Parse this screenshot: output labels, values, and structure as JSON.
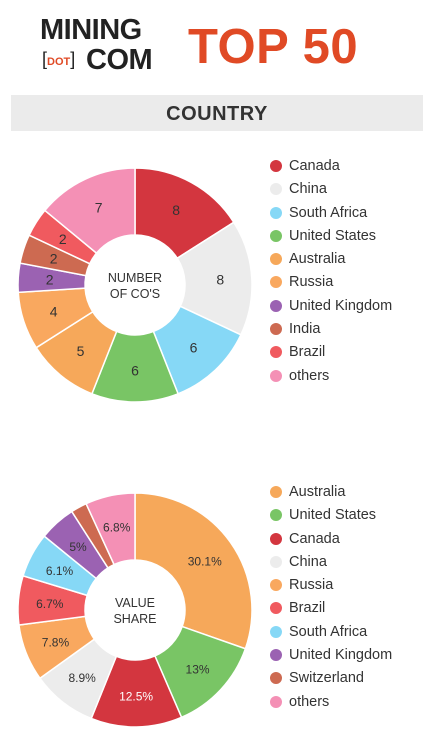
{
  "brand": {
    "mining": "MINING",
    "dot": "DOT",
    "com": "COM",
    "top": "TOP 50"
  },
  "section_title": "COUNTRY",
  "chart_data": [
    {
      "type": "pie",
      "center_label": [
        "NUMBER",
        "OF CO'S"
      ],
      "start_angle": 0,
      "slices": [
        {
          "label": "Canada",
          "value": 8,
          "display": "8",
          "color": "#d3363f"
        },
        {
          "label": "China",
          "value": 8,
          "display": "8",
          "color": "#ececec"
        },
        {
          "label": "South Africa",
          "value": 6,
          "display": "6",
          "color": "#86d8f6"
        },
        {
          "label": "United States",
          "value": 6,
          "display": "6",
          "color": "#79c565"
        },
        {
          "label": "Australia",
          "value": 5,
          "display": "5",
          "color": "#f6a85a"
        },
        {
          "label": "Russia",
          "value": 4,
          "display": "4",
          "color": "#f9a85f"
        },
        {
          "label": "United Kingdom",
          "value": 2,
          "display": "2",
          "color": "#9b62b2"
        },
        {
          "label": "India",
          "value": 2,
          "display": "2",
          "color": "#cd6a51"
        },
        {
          "label": "Brazil",
          "value": 2,
          "display": "2",
          "color": "#f05a5f"
        },
        {
          "label": "others",
          "value": 7,
          "display": "7",
          "color": "#f490b5"
        }
      ],
      "legend": [
        {
          "label": "Canada",
          "color": "#d3363f"
        },
        {
          "label": "China",
          "color": "#ececec"
        },
        {
          "label": "South Africa",
          "color": "#86d8f6"
        },
        {
          "label": "United States",
          "color": "#79c565"
        },
        {
          "label": "Australia",
          "color": "#f6a85a"
        },
        {
          "label": "Russia",
          "color": "#f9a85f"
        },
        {
          "label": "United Kingdom",
          "color": "#9b62b2"
        },
        {
          "label": "India",
          "color": "#cd6a51"
        },
        {
          "label": "Brazil",
          "color": "#f05a5f"
        },
        {
          "label": "others",
          "color": "#f490b5"
        }
      ]
    },
    {
      "type": "pie",
      "center_label": [
        "VALUE",
        "SHARE"
      ],
      "start_angle": 0,
      "slices": [
        {
          "label": "Australia",
          "value": 30.1,
          "display": "30.1%",
          "color": "#f6a85a"
        },
        {
          "label": "United States",
          "value": 13,
          "display": "13%",
          "color": "#79c565"
        },
        {
          "label": "Canada",
          "value": 12.5,
          "display": "12.5%",
          "color": "#d3363f",
          "text_color": "#ffffff"
        },
        {
          "label": "China",
          "value": 8.9,
          "display": "8.9%",
          "color": "#ececec"
        },
        {
          "label": "Russia",
          "value": 7.8,
          "display": "7.8%",
          "color": "#f9a85f"
        },
        {
          "label": "Brazil",
          "value": 6.7,
          "display": "6.7%",
          "color": "#f05a5f"
        },
        {
          "label": "South Africa",
          "value": 6.1,
          "display": "6.1%",
          "color": "#86d8f6"
        },
        {
          "label": "United Kingdom",
          "value": 5,
          "display": "5%",
          "color": "#9b62b2"
        },
        {
          "label": "Switzerland",
          "value": 2.2,
          "display": "",
          "color": "#cd6a51"
        },
        {
          "label": "others",
          "value": 6.8,
          "display": "6.8%",
          "color": "#f490b5"
        }
      ],
      "legend": [
        {
          "label": "Australia",
          "color": "#f6a85a"
        },
        {
          "label": "United States",
          "color": "#79c565"
        },
        {
          "label": "Canada",
          "color": "#d3363f"
        },
        {
          "label": "China",
          "color": "#ececec"
        },
        {
          "label": "Russia",
          "color": "#f9a85f"
        },
        {
          "label": "Brazil",
          "color": "#f05a5f"
        },
        {
          "label": "South Africa",
          "color": "#86d8f6"
        },
        {
          "label": "United Kingdom",
          "color": "#9b62b2"
        },
        {
          "label": "Switzerland",
          "color": "#cd6a51"
        },
        {
          "label": "others",
          "color": "#f490b5"
        }
      ]
    }
  ]
}
